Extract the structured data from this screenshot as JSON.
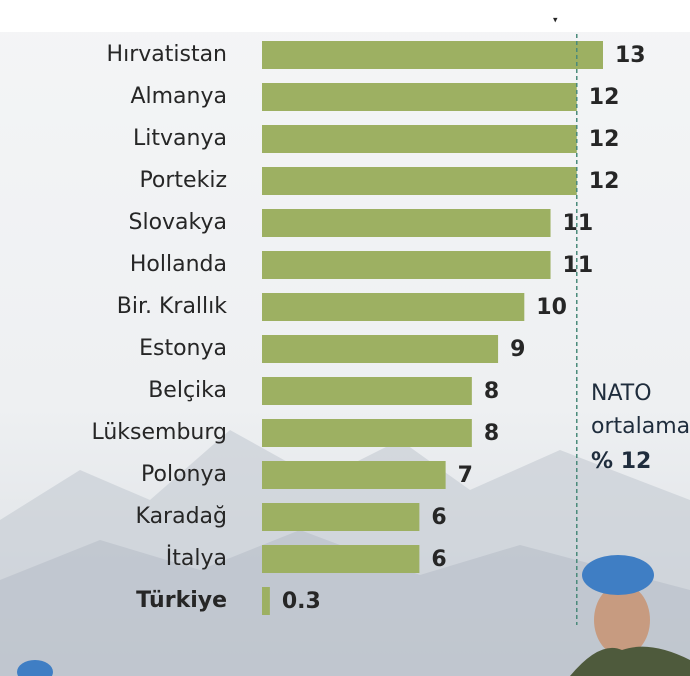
{
  "chart_data": {
    "type": "bar",
    "orientation": "horizontal",
    "categories": [
      "Hırvatistan",
      "Almanya",
      "Litvanya",
      "Portekiz",
      "Slovakya",
      "Hollanda",
      "Bir. Krallık",
      "Estonya",
      "Belçika",
      "Lüksemburg",
      "Polonya",
      "Karadağ",
      "İtalya",
      "Türkiye"
    ],
    "values": [
      13,
      12,
      12,
      12,
      11,
      11,
      10,
      9,
      8,
      8,
      7,
      6,
      6,
      0.3
    ],
    "color": "#9db062",
    "emphasis_index": 13,
    "xlim": [
      0,
      13
    ],
    "reference_line": {
      "value": 12,
      "label": "% 12",
      "text": [
        "NATO",
        "ortalaması"
      ],
      "color": "#4a8a7a"
    }
  }
}
